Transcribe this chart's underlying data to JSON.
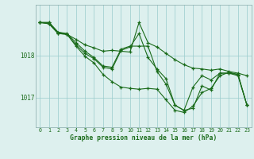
{
  "bg_color": "#ddf0ee",
  "grid_color": "#99cccc",
  "line_color": "#1a6b1a",
  "xlabel": "Graphe pression niveau de la mer (hPa)",
  "ylabel_ticks": [
    1017,
    1018
  ],
  "xlim": [
    -0.5,
    23.5
  ],
  "ylim": [
    1016.3,
    1019.2
  ],
  "xticks": [
    0,
    1,
    2,
    3,
    4,
    5,
    6,
    7,
    8,
    9,
    10,
    11,
    12,
    13,
    14,
    15,
    16,
    17,
    18,
    19,
    20,
    21,
    22,
    23
  ],
  "line1": [
    1018.78,
    1018.78,
    1018.55,
    1018.5,
    1018.38,
    1018.25,
    1018.18,
    1018.1,
    1018.12,
    1018.1,
    1018.08,
    1018.78,
    1018.3,
    1018.2,
    1018.05,
    1017.9,
    1017.78,
    1017.7,
    1017.68,
    1017.65,
    1017.68,
    1017.62,
    1017.58,
    1017.52
  ],
  "line2": [
    1018.78,
    1018.75,
    1018.52,
    1018.5,
    1018.22,
    1017.98,
    1017.82,
    1017.55,
    1017.38,
    1017.25,
    1017.22,
    1017.2,
    1017.22,
    1017.2,
    1016.95,
    1016.7,
    1016.65,
    1016.8,
    1017.12,
    1017.22,
    1017.52,
    1017.6,
    1017.55,
    1016.82
  ],
  "line3": [
    1018.78,
    1018.75,
    1018.52,
    1018.5,
    1018.25,
    1018.05,
    1017.92,
    1017.72,
    1017.68,
    1018.12,
    1018.2,
    1018.52,
    1017.95,
    1017.68,
    1017.45,
    1016.82,
    1016.7,
    1016.75,
    1017.28,
    1017.18,
    1017.58,
    1017.58,
    1017.52,
    1016.82
  ],
  "line4": [
    1018.78,
    1018.78,
    1018.55,
    1018.52,
    1018.3,
    1018.1,
    1017.95,
    1017.75,
    1017.72,
    1018.15,
    1018.22,
    1018.22,
    1018.22,
    1017.62,
    1017.32,
    1016.82,
    1016.7,
    1017.25,
    1017.52,
    1017.42,
    1017.58,
    1017.58,
    1017.55,
    1016.82
  ]
}
